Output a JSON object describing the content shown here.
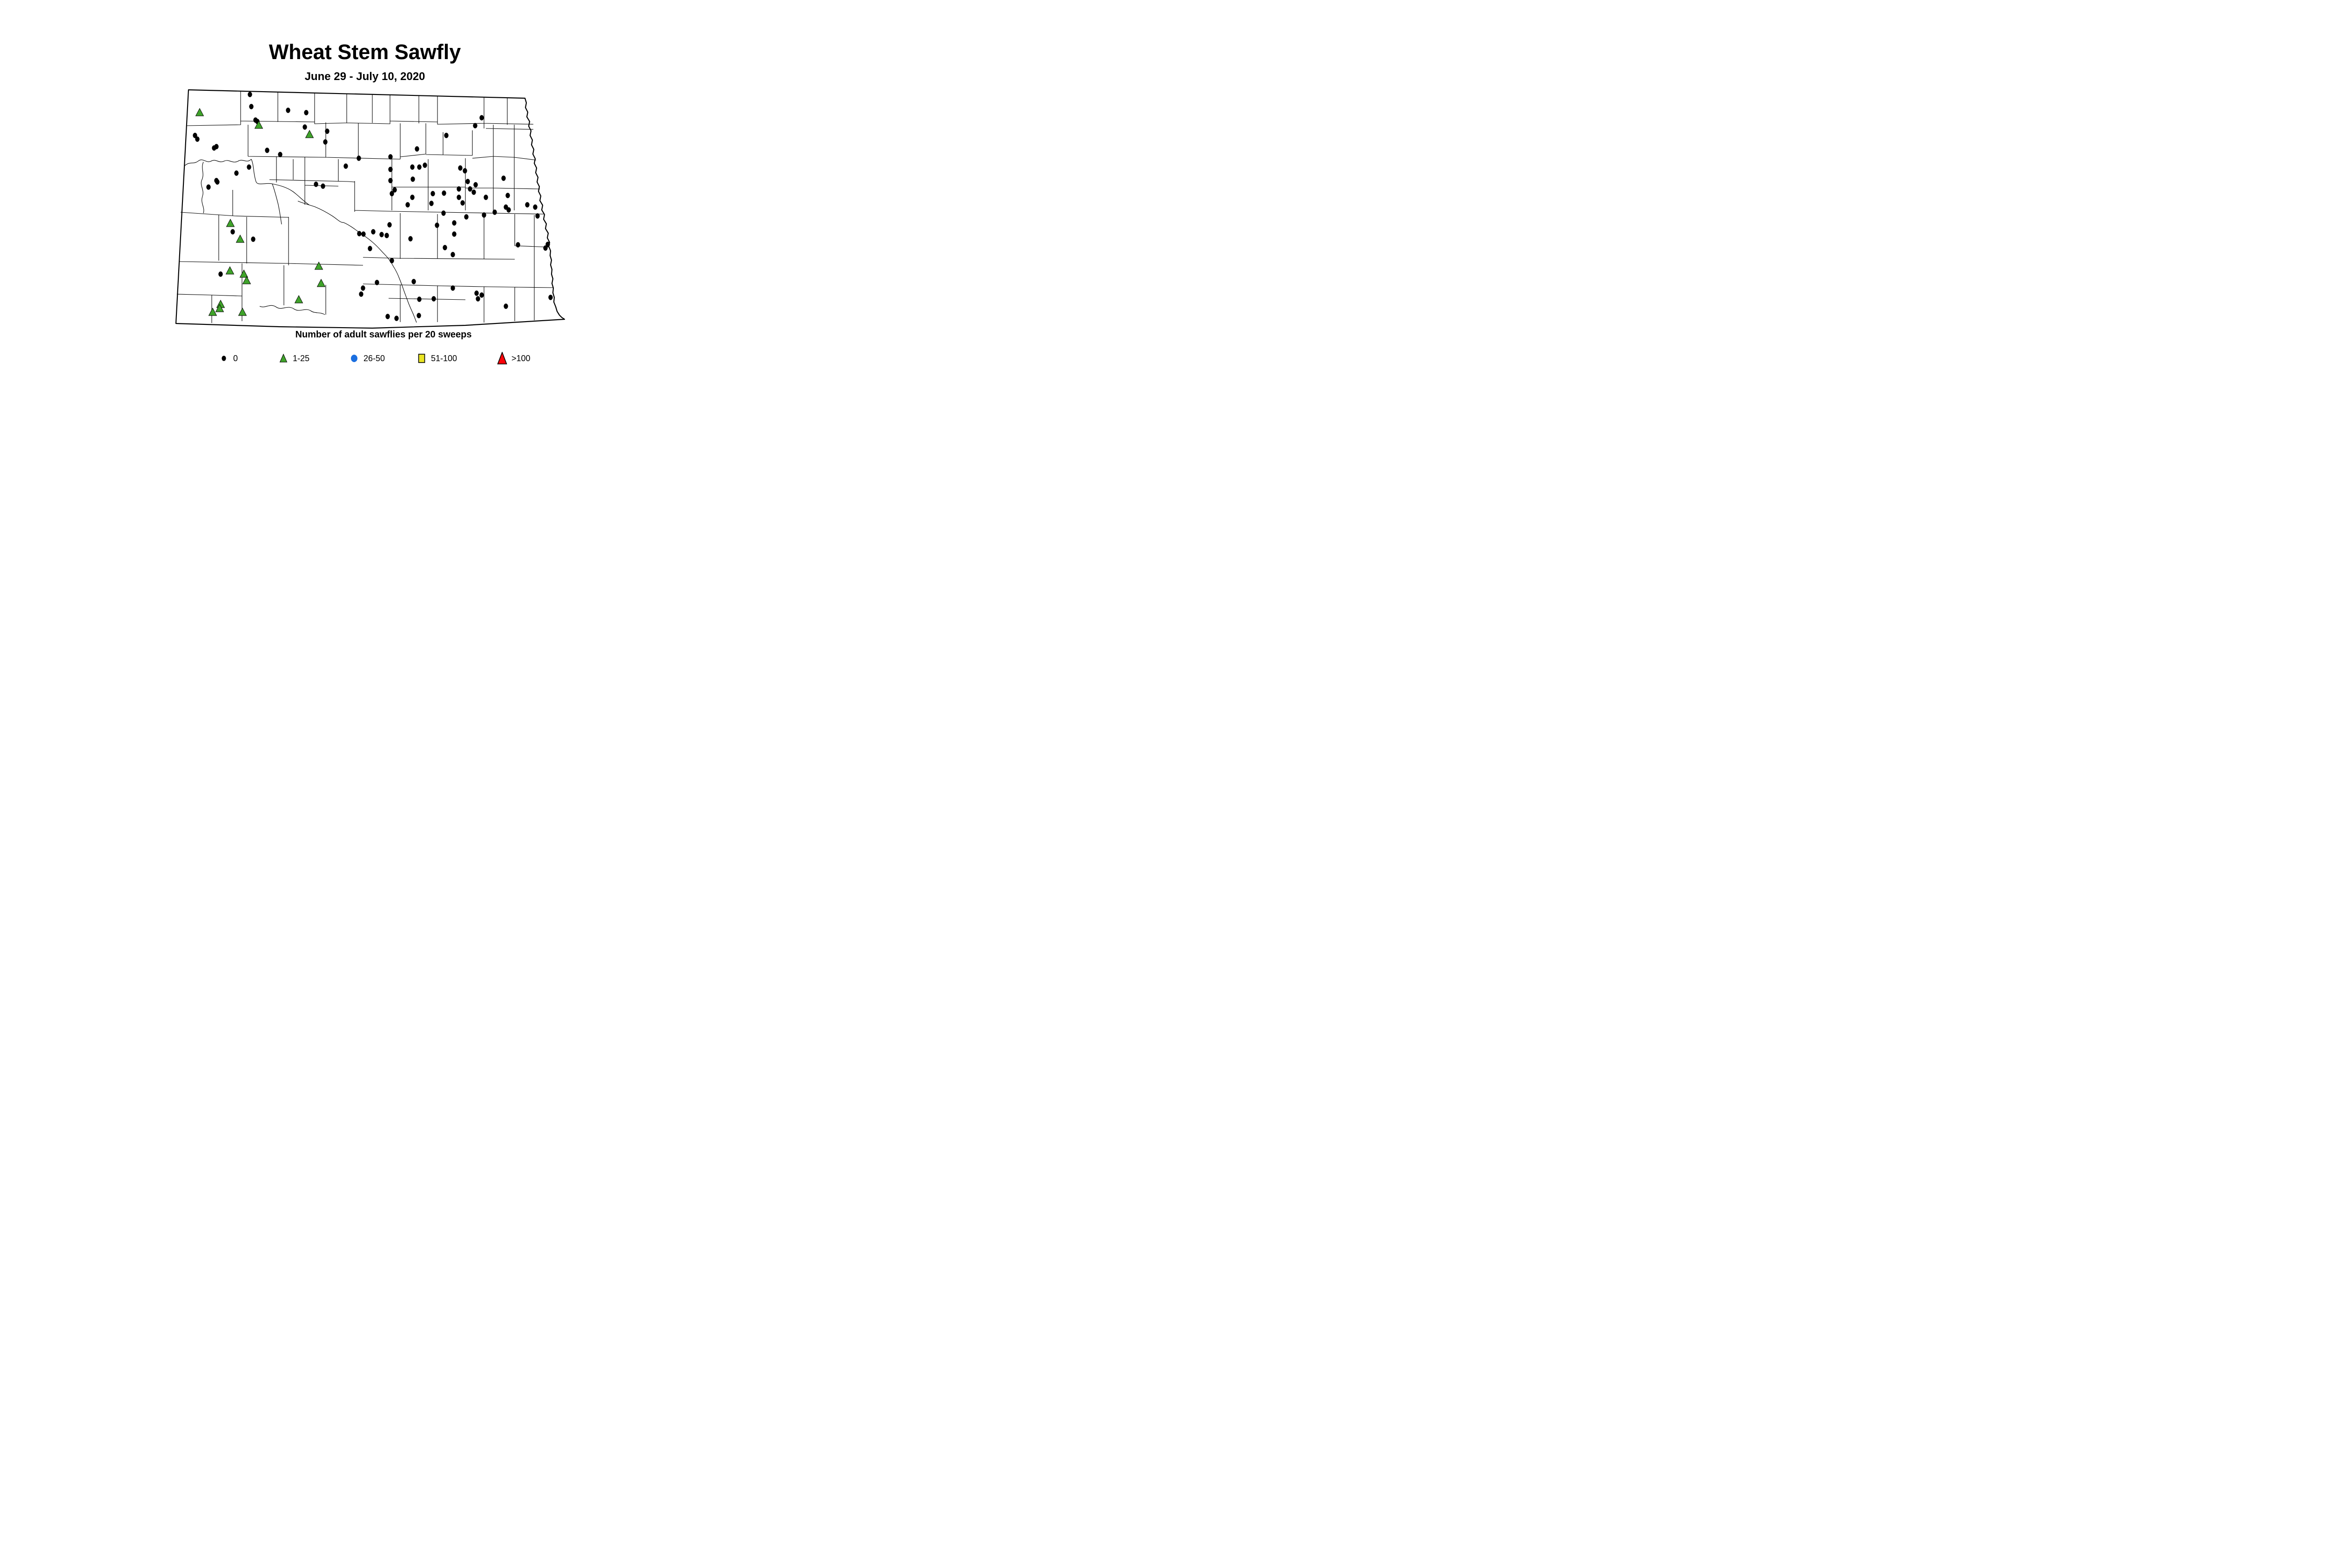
{
  "title": "Wheat Stem Sawfly",
  "subtitle": "June 29 - July 10, 2020",
  "legend": {
    "title": "Number of adult sawflies per 20 sweeps"
  },
  "colors": {
    "dot": "#000000",
    "triangle_1_25": "#3FA32A",
    "circle_26_50": "#1B6FE0",
    "square_51_100": "#E9E424",
    "triangle_gt100": "#FB0209",
    "map_outline": "#000000"
  },
  "map": {
    "region": "North Dakota county map",
    "categories": [
      {
        "key": "zero",
        "label": "0",
        "shape": "dot",
        "color": "#000000",
        "points": [
          [
            537,
            203
          ],
          [
            540,
            229
          ],
          [
            619,
            237
          ],
          [
            658,
            242
          ],
          [
            549,
            258
          ],
          [
            553,
            261
          ],
          [
            655,
            273
          ],
          [
            703,
            282
          ],
          [
            419,
            291
          ],
          [
            424,
            299
          ],
          [
            699,
            305
          ],
          [
            465,
            315
          ],
          [
            460,
            318
          ],
          [
            574,
            323
          ],
          [
            602,
            332
          ],
          [
            771,
            340
          ],
          [
            743,
            357
          ],
          [
            535,
            359
          ],
          [
            508,
            372
          ],
          [
            465,
            388
          ],
          [
            467,
            391
          ],
          [
            448,
            402
          ],
          [
            679,
            396
          ],
          [
            694,
            400
          ],
          [
            1035,
            253
          ],
          [
            1021,
            270
          ],
          [
            959,
            291
          ],
          [
            896,
            320
          ],
          [
            839,
            337
          ],
          [
            886,
            359
          ],
          [
            901,
            359
          ],
          [
            913,
            355
          ],
          [
            839,
            364
          ],
          [
            989,
            361
          ],
          [
            999,
            367
          ],
          [
            887,
            385
          ],
          [
            839,
            388
          ],
          [
            1082,
            383
          ],
          [
            1005,
            390
          ],
          [
            1022,
            397
          ],
          [
            848,
            408
          ],
          [
            842,
            416
          ],
          [
            1010,
            406
          ],
          [
            1018,
            413
          ],
          [
            986,
            406
          ],
          [
            930,
            416
          ],
          [
            954,
            415
          ],
          [
            886,
            424
          ],
          [
            986,
            424
          ],
          [
            1044,
            424
          ],
          [
            1091,
            420
          ],
          [
            1133,
            440
          ],
          [
            876,
            440
          ],
          [
            927,
            437
          ],
          [
            994,
            436
          ],
          [
            1087,
            445
          ],
          [
            953,
            458
          ],
          [
            1002,
            466
          ],
          [
            1040,
            462
          ],
          [
            1063,
            456
          ],
          [
            1093,
            451
          ],
          [
            1150,
            445
          ],
          [
            1155,
            464
          ],
          [
            837,
            483
          ],
          [
            802,
            498
          ],
          [
            820,
            504
          ],
          [
            831,
            506
          ],
          [
            772,
            502
          ],
          [
            781,
            503
          ],
          [
            939,
            484
          ],
          [
            976,
            479
          ],
          [
            976,
            503
          ],
          [
            882,
            513
          ],
          [
            795,
            534
          ],
          [
            956,
            532
          ],
          [
            973,
            547
          ],
          [
            842,
            560
          ],
          [
            1113,
            526
          ],
          [
            810,
            607
          ],
          [
            780,
            619
          ],
          [
            776,
            632
          ],
          [
            889,
            605
          ],
          [
            973,
            619
          ],
          [
            1024,
            630
          ],
          [
            1035,
            634
          ],
          [
            1027,
            642
          ],
          [
            901,
            643
          ],
          [
            932,
            642
          ],
          [
            1087,
            658
          ],
          [
            833,
            680
          ],
          [
            852,
            684
          ],
          [
            900,
            678
          ],
          [
            1177,
            525
          ],
          [
            1172,
            533
          ],
          [
            1183,
            639
          ],
          [
            500,
            498
          ],
          [
            544,
            514
          ],
          [
            474,
            589
          ]
        ]
      },
      {
        "key": "1-25",
        "label": "1-25",
        "shape": "triangle",
        "color": "#3FA32A",
        "points": [
          [
            429,
            242
          ],
          [
            556,
            269
          ],
          [
            665,
            289
          ],
          [
            495,
            480
          ],
          [
            516,
            514
          ],
          [
            685,
            572
          ],
          [
            494,
            582
          ],
          [
            524,
            589
          ],
          [
            530,
            603
          ],
          [
            690,
            609
          ],
          [
            642,
            644
          ],
          [
            474,
            654
          ],
          [
            472,
            663
          ],
          [
            457,
            671
          ],
          [
            521,
            671
          ]
        ]
      },
      {
        "key": "26-50",
        "label": "26-50",
        "shape": "circle",
        "color": "#1B6FE0",
        "points": []
      },
      {
        "key": "51-100",
        "label": "51-100",
        "shape": "square",
        "color": "#E9E424",
        "points": []
      },
      {
        "key": "gt100",
        "label": ">100",
        "shape": "big-triangle",
        "color": "#FB0209",
        "points": []
      }
    ]
  }
}
